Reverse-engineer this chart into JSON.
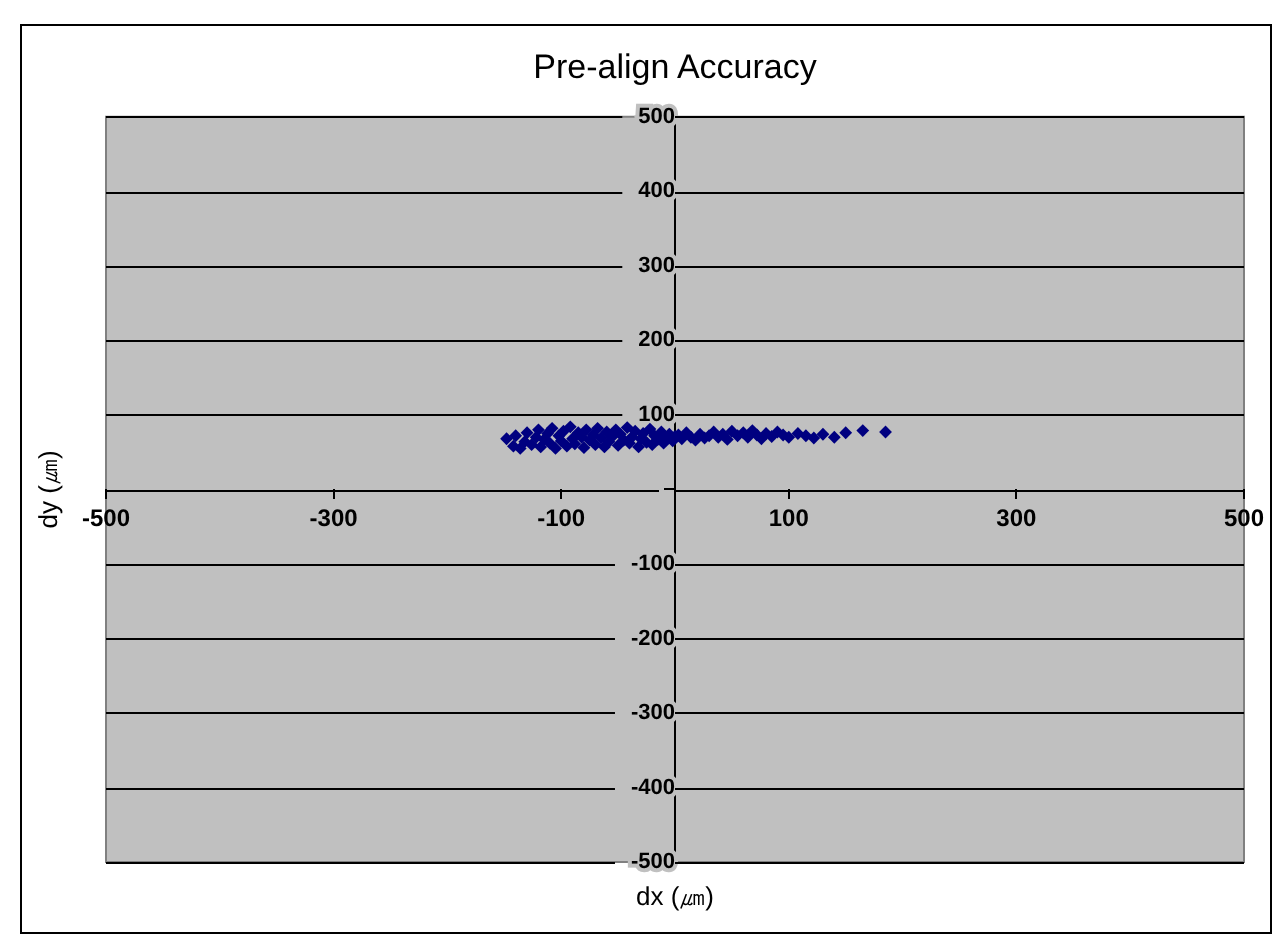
{
  "chart_data": {
    "type": "scatter",
    "title": "Pre-align Accuracy",
    "xlabel": "dx (㎛)",
    "ylabel": "dy (㎛)",
    "xlim": [
      -500,
      500
    ],
    "xticks": [
      -500,
      -300,
      -100,
      100,
      300,
      500
    ],
    "ylim": [
      -500,
      500
    ],
    "yticks": [
      -500,
      -400,
      -300,
      -200,
      -100,
      {
        "value": 0,
        "label": null
      },
      100,
      200,
      300,
      400,
      500
    ],
    "grid": "y",
    "marker": "diamond",
    "series": [
      {
        "color": "#000080",
        "x": [
          -148,
          -142,
          -140,
          -136,
          -132,
          -130,
          -126,
          -122,
          -120,
          -118,
          -115,
          -112,
          -110,
          -108,
          -105,
          -102,
          -100,
          -98,
          -95,
          -92,
          -90,
          -88,
          -85,
          -82,
          -80,
          -78,
          -75,
          -72,
          -70,
          -68,
          -65,
          -62,
          -60,
          -58,
          -55,
          -52,
          -50,
          -48,
          -45,
          -42,
          -40,
          -38,
          -35,
          -32,
          -30,
          -28,
          -25,
          -22,
          -20,
          -18,
          -15,
          -12,
          -10,
          -8,
          -5,
          -2,
          0,
          3,
          6,
          10,
          14,
          18,
          22,
          26,
          30,
          34,
          38,
          42,
          46,
          50,
          55,
          60,
          64,
          68,
          72,
          76,
          80,
          85,
          90,
          95,
          100,
          108,
          115,
          122,
          130,
          140,
          150,
          165,
          185
        ],
        "values": [
          68,
          58,
          72,
          55,
          64,
          76,
          60,
          70,
          80,
          57,
          67,
          75,
          62,
          82,
          55,
          72,
          65,
          78,
          58,
          84,
          68,
          61,
          76,
          70,
          56,
          80,
          66,
          73,
          60,
          82,
          69,
          57,
          77,
          64,
          71,
          80,
          59,
          74,
          66,
          83,
          62,
          70,
          78,
          57,
          68,
          75,
          63,
          81,
          60,
          72,
          67,
          77,
          62,
          70,
          74,
          65,
          71,
          73,
          68,
          76,
          70,
          66,
          74,
          69,
          72,
          77,
          70,
          74,
          67,
          78,
          72,
          76,
          70,
          79,
          73,
          68,
          75,
          71,
          77,
          73,
          70,
          75,
          72,
          69,
          74,
          70,
          76,
          79,
          77
        ]
      }
    ]
  }
}
